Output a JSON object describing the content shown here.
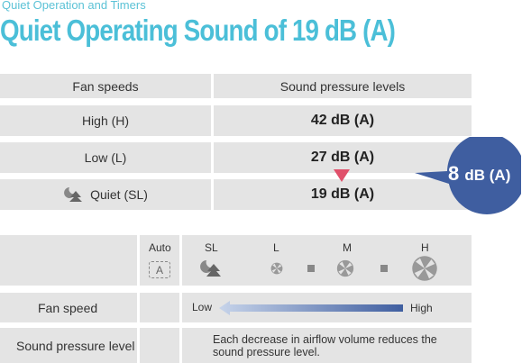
{
  "header": {
    "subtitle": "Quiet Operation and Timers",
    "title": "Quiet Operating Sound of 19 dB (A)"
  },
  "table1": {
    "col1_header": "Fan speeds",
    "col2_header": "Sound pressure levels",
    "rows": [
      {
        "speed": "High (H)",
        "level": "42 dB (A)"
      },
      {
        "speed": "Low (L)",
        "level": "27 dB (A)"
      },
      {
        "speed": "Quiet (SL)",
        "level": "19 dB (A)"
      }
    ],
    "difference": {
      "value": "8",
      "unit": "dB (A)"
    }
  },
  "table2": {
    "modes": [
      "Auto",
      "SL",
      "L",
      "M",
      "H"
    ],
    "auto_icon_text": "A",
    "fan_speed_label": "Fan speed",
    "low_label": "Low",
    "high_label": "High",
    "sound_label": "Sound pressure level",
    "sound_note": "Each decrease in airflow volume reduces the sound pressure level."
  },
  "colors": {
    "accent": "#4bbfd8",
    "bubble": "#3f5ea0",
    "arrow": "#e0506a",
    "cell": "#e4e4e4"
  },
  "icons": [
    "quiet-sl-icon",
    "auto-a-icon",
    "fan-icon"
  ]
}
